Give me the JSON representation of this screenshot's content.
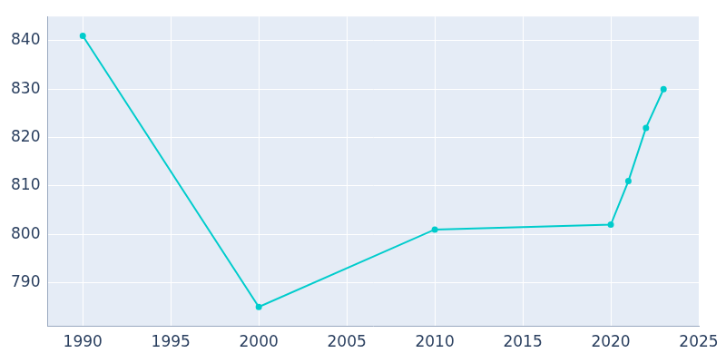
{
  "chart_data": {
    "type": "line",
    "x": [
      1990,
      2000,
      2010,
      2020,
      2021,
      2022,
      2023
    ],
    "values": [
      841,
      785,
      801,
      802,
      811,
      822,
      830
    ],
    "color": "#00cccc",
    "marker": "circle",
    "xlim": [
      1988,
      2025
    ],
    "xticks": [
      1990,
      1995,
      2000,
      2005,
      2010,
      2015,
      2020,
      2025
    ],
    "ylim": [
      781,
      845
    ],
    "yticks": [
      790,
      800,
      810,
      820,
      830,
      840
    ],
    "grid": true
  }
}
